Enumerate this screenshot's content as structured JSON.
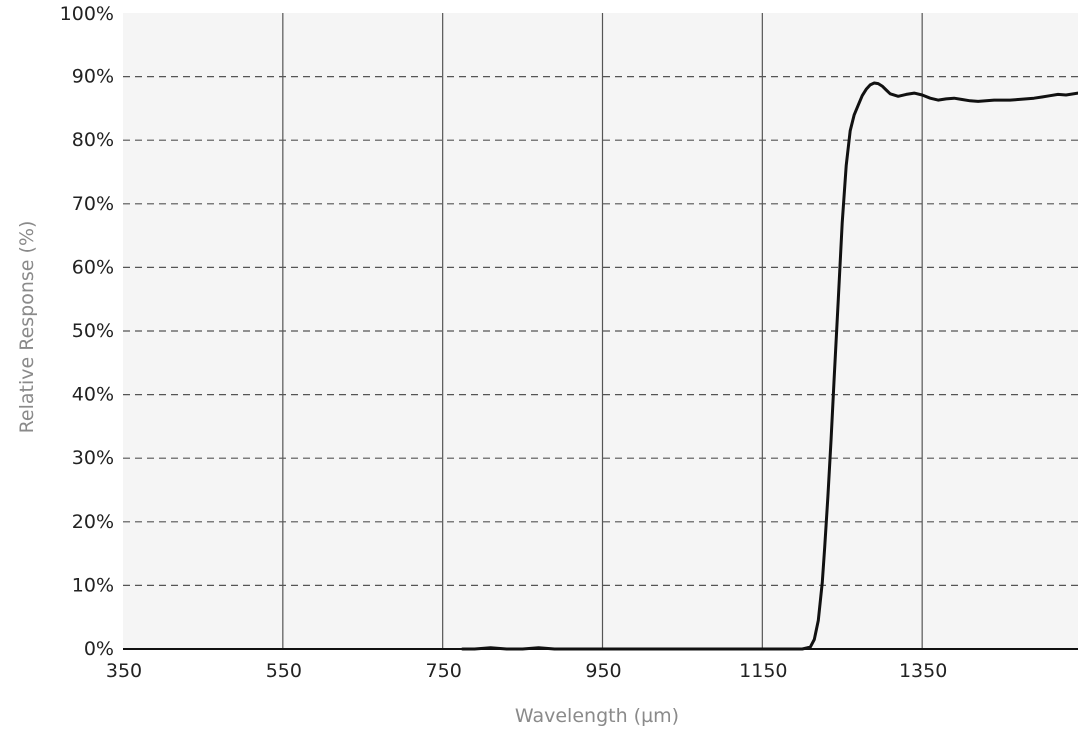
{
  "chart_data": {
    "type": "line",
    "title": "",
    "xlabel": "Wavelength (µm)",
    "ylabel": "Relative Response (%)",
    "xlim": [
      350,
      1545
    ],
    "ylim": [
      0,
      100
    ],
    "x_ticks": [
      350,
      550,
      750,
      950,
      1150,
      1350
    ],
    "x_tick_labels": [
      "350",
      "550",
      "750",
      "950",
      "1150",
      "1350"
    ],
    "y_ticks": [
      0,
      10,
      20,
      30,
      40,
      50,
      60,
      70,
      80,
      90,
      100
    ],
    "y_tick_labels": [
      "0%",
      "10%",
      "20%",
      "30%",
      "40%",
      "50%",
      "60%",
      "70%",
      "80%",
      "90%",
      "100%"
    ],
    "grid": {
      "vertical": "solid",
      "horizontal": "dashed"
    },
    "background": "#f5f5f5",
    "line_color": "#111111",
    "series": [
      {
        "x": [
          775,
          790,
          800,
          810,
          820,
          830,
          840,
          850,
          860,
          870,
          880,
          890,
          900,
          950,
          1000,
          1050,
          1100,
          1150,
          1200,
          1210,
          1215,
          1220,
          1225,
          1228,
          1232,
          1236,
          1240,
          1245,
          1250,
          1255,
          1260,
          1265,
          1270,
          1275,
          1280,
          1285,
          1290,
          1295,
          1300,
          1305,
          1310,
          1320,
          1330,
          1340,
          1350,
          1360,
          1370,
          1380,
          1390,
          1400,
          1410,
          1420,
          1430,
          1440,
          1450,
          1460,
          1470,
          1480,
          1490,
          1500,
          1510,
          1520,
          1530,
          1545
        ],
        "y": [
          0.0,
          0.0,
          0.1,
          0.2,
          0.1,
          0.0,
          0.0,
          0.0,
          0.1,
          0.2,
          0.1,
          0.0,
          0.0,
          0.0,
          0.0,
          0.0,
          0.0,
          0.0,
          0.0,
          0.3,
          1.5,
          4.5,
          10.5,
          16.0,
          24.0,
          33.0,
          43.0,
          55.0,
          67.0,
          76.0,
          81.5,
          84.0,
          85.5,
          87.0,
          88.0,
          88.7,
          89.0,
          88.9,
          88.5,
          87.9,
          87.3,
          86.9,
          87.2,
          87.4,
          87.1,
          86.6,
          86.3,
          86.5,
          86.6,
          86.4,
          86.2,
          86.1,
          86.2,
          86.3,
          86.3,
          86.3,
          86.4,
          86.5,
          86.6,
          86.8,
          87.0,
          87.2,
          87.1,
          87.4
        ]
      }
    ]
  }
}
